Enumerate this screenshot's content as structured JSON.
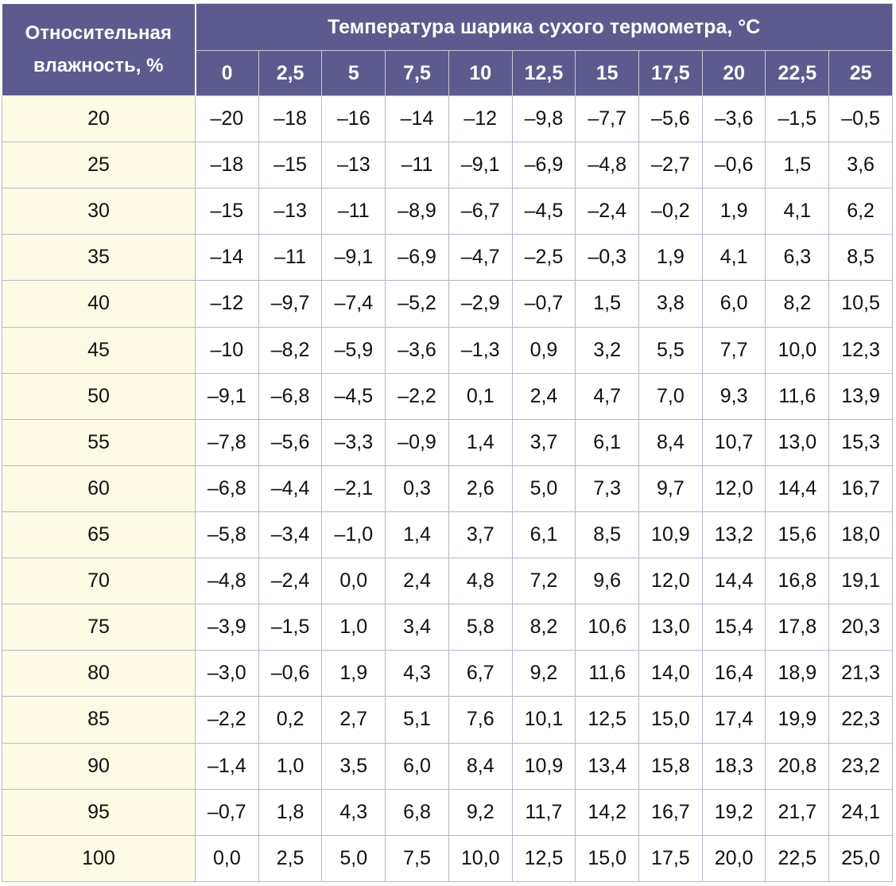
{
  "table": {
    "header_rh": "Относительная влажность, %",
    "header_temp": "Температура шарика сухого термометра, °C",
    "columns": [
      "0",
      "2,5",
      "5",
      "7,5",
      "10",
      "12,5",
      "15",
      "17,5",
      "20",
      "22,5",
      "25"
    ],
    "rows": [
      {
        "rh": "20",
        "values": [
          "–20",
          "–18",
          "–16",
          "–14",
          "–12",
          "–9,8",
          "–7,7",
          "–5,6",
          "–3,6",
          "–1,5",
          "–0,5"
        ]
      },
      {
        "rh": "25",
        "values": [
          "–18",
          "–15",
          "–13",
          "–11",
          "–9,1",
          "–6,9",
          "–4,8",
          "–2,7",
          "–0,6",
          "1,5",
          "3,6"
        ]
      },
      {
        "rh": "30",
        "values": [
          "–15",
          "–13",
          "–11",
          "–8,9",
          "–6,7",
          "–4,5",
          "–2,4",
          "–0,2",
          "1,9",
          "4,1",
          "6,2"
        ]
      },
      {
        "rh": "35",
        "values": [
          "–14",
          "–11",
          "–9,1",
          "–6,9",
          "–4,7",
          "–2,5",
          "–0,3",
          "1,9",
          "4,1",
          "6,3",
          "8,5"
        ]
      },
      {
        "rh": "40",
        "values": [
          "–12",
          "–9,7",
          "–7,4",
          "–5,2",
          "–2,9",
          "–0,7",
          "1,5",
          "3,8",
          "6,0",
          "8,2",
          "10,5"
        ]
      },
      {
        "rh": "45",
        "values": [
          "–10",
          "–8,2",
          "–5,9",
          "–3,6",
          "–1,3",
          "0,9",
          "3,2",
          "5,5",
          "7,7",
          "10,0",
          "12,3"
        ]
      },
      {
        "rh": "50",
        "values": [
          "–9,1",
          "–6,8",
          "–4,5",
          "–2,2",
          "0,1",
          "2,4",
          "4,7",
          "7,0",
          "9,3",
          "11,6",
          "13,9"
        ]
      },
      {
        "rh": "55",
        "values": [
          "–7,8",
          "–5,6",
          "–3,3",
          "–0,9",
          "1,4",
          "3,7",
          "6,1",
          "8,4",
          "10,7",
          "13,0",
          "15,3"
        ]
      },
      {
        "rh": "60",
        "values": [
          "–6,8",
          "–4,4",
          "–2,1",
          "0,3",
          "2,6",
          "5,0",
          "7,3",
          "9,7",
          "12,0",
          "14,4",
          "16,7"
        ]
      },
      {
        "rh": "65",
        "values": [
          "–5,8",
          "–3,4",
          "–1,0",
          "1,4",
          "3,7",
          "6,1",
          "8,5",
          "10,9",
          "13,2",
          "15,6",
          "18,0"
        ]
      },
      {
        "rh": "70",
        "values": [
          "–4,8",
          "–2,4",
          "0,0",
          "2,4",
          "4,8",
          "7,2",
          "9,6",
          "12,0",
          "14,4",
          "16,8",
          "19,1"
        ]
      },
      {
        "rh": "75",
        "values": [
          "–3,9",
          "–1,5",
          "1,0",
          "3,4",
          "5,8",
          "8,2",
          "10,6",
          "13,0",
          "15,4",
          "17,8",
          "20,3"
        ]
      },
      {
        "rh": "80",
        "values": [
          "–3,0",
          "–0,6",
          "1,9",
          "4,3",
          "6,7",
          "9,2",
          "11,6",
          "14,0",
          "16,4",
          "18,9",
          "21,3"
        ]
      },
      {
        "rh": "85",
        "values": [
          "–2,2",
          "0,2",
          "2,7",
          "5,1",
          "7,6",
          "10,1",
          "12,5",
          "15,0",
          "17,4",
          "19,9",
          "22,3"
        ]
      },
      {
        "rh": "90",
        "values": [
          "–1,4",
          "1,0",
          "3,5",
          "6,0",
          "8,4",
          "10,9",
          "13,4",
          "15,8",
          "18,3",
          "20,8",
          "23,2"
        ]
      },
      {
        "rh": "95",
        "values": [
          "–0,7",
          "1,8",
          "4,3",
          "6,8",
          "9,2",
          "11,7",
          "14,2",
          "16,7",
          "19,2",
          "21,7",
          "24,1"
        ]
      },
      {
        "rh": "100",
        "values": [
          "0,0",
          "2,5",
          "5,0",
          "7,5",
          "10,0",
          "12,5",
          "15,0",
          "17,5",
          "20,0",
          "22,5",
          "25,0"
        ]
      }
    ]
  },
  "colors": {
    "header_bg": "#5d5b8d",
    "header_text": "#ffffff",
    "rh_column_bg": "#fdfbe3",
    "grid_line": "#b7b7c9"
  }
}
